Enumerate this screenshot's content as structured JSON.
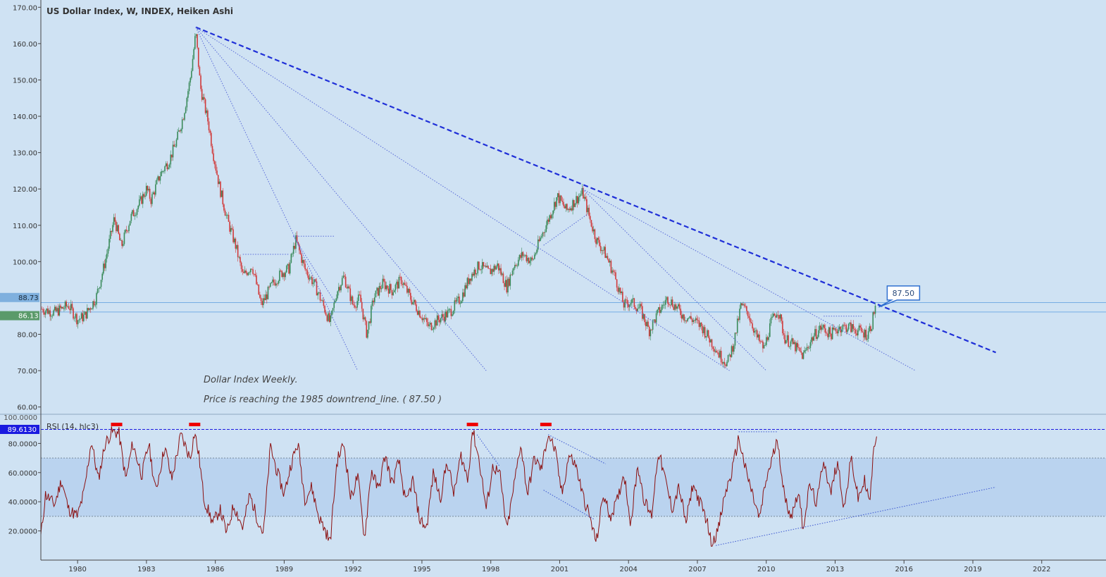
{
  "chart_data": [
    {
      "type": "candlestick",
      "title": "US Dollar Index, W, INDEX, Heiken Ashi",
      "ylim": [
        58,
        172
      ],
      "y_ticks": [
        "170.00",
        "160.00",
        "150.00",
        "140.00",
        "130.00",
        "120.00",
        "110.00",
        "100.00",
        "80.00",
        "70.00",
        "60.00"
      ],
      "y_tick_values": [
        170,
        160,
        150,
        140,
        130,
        120,
        110,
        100,
        80,
        70,
        60
      ],
      "xlim": [
        1978.4,
        2024.8
      ],
      "x_ticks": [
        "1980",
        "1983",
        "1986",
        "1989",
        "1992",
        "1995",
        "1998",
        "2001",
        "2004",
        "2007",
        "2010",
        "2013",
        "2016",
        "2019",
        "2022"
      ],
      "x_tick_values": [
        1980,
        1983,
        1986,
        1989,
        1992,
        1995,
        1998,
        2001,
        2004,
        2007,
        2010,
        2013,
        2016,
        2019,
        2022
      ],
      "price_labels": {
        "label1": "88.73",
        "value1": 88.73,
        "label2": "86.13",
        "value2": 86.13
      },
      "callout": "87.50",
      "callout_value": 87.5,
      "callout_x": 2014.9,
      "annotation_line1": "Dollar Index Weekly.",
      "annotation_line2": "Price is reaching the 1985 downtrend_line. ( 87.50 )",
      "colors": {
        "up": "#3a8a5a",
        "down": "#d03a3a",
        "trend": "#1f2fd8",
        "thin": "#5a6ad8"
      },
      "path": [
        [
          1978.4,
          87
        ],
        [
          1979.0,
          86
        ],
        [
          1979.6,
          88
        ],
        [
          1980.0,
          84
        ],
        [
          1980.3,
          85
        ],
        [
          1980.8,
          90
        ],
        [
          1981.2,
          100
        ],
        [
          1981.6,
          112
        ],
        [
          1981.9,
          104
        ],
        [
          1982.3,
          112
        ],
        [
          1982.7,
          116
        ],
        [
          1983.0,
          120
        ],
        [
          1983.2,
          117
        ],
        [
          1983.6,
          124
        ],
        [
          1984.0,
          128
        ],
        [
          1984.3,
          133
        ],
        [
          1984.6,
          140
        ],
        [
          1984.9,
          150
        ],
        [
          1985.15,
          163
        ],
        [
          1985.35,
          148
        ],
        [
          1985.7,
          138
        ],
        [
          1985.9,
          130
        ],
        [
          1986.2,
          120
        ],
        [
          1986.5,
          112
        ],
        [
          1986.9,
          104
        ],
        [
          1987.2,
          96
        ],
        [
          1987.6,
          99
        ],
        [
          1988.0,
          88
        ],
        [
          1988.5,
          94
        ],
        [
          1988.9,
          97
        ],
        [
          1989.2,
          98
        ],
        [
          1989.5,
          106
        ],
        [
          1989.9,
          98
        ],
        [
          1990.3,
          94
        ],
        [
          1990.7,
          88
        ],
        [
          1991.0,
          83
        ],
        [
          1991.3,
          92
        ],
        [
          1991.6,
          96
        ],
        [
          1992.0,
          88
        ],
        [
          1992.3,
          90
        ],
        [
          1992.6,
          80
        ],
        [
          1992.9,
          90
        ],
        [
          1993.3,
          94
        ],
        [
          1993.7,
          92
        ],
        [
          1994.1,
          95
        ],
        [
          1994.5,
          90
        ],
        [
          1994.9,
          86
        ],
        [
          1995.3,
          82
        ],
        [
          1995.7,
          84
        ],
        [
          1996.2,
          86
        ],
        [
          1996.7,
          90
        ],
        [
          1997.1,
          96
        ],
        [
          1997.5,
          99
        ],
        [
          1997.9,
          97
        ],
        [
          1998.3,
          99
        ],
        [
          1998.7,
          93
        ],
        [
          1999.0,
          99
        ],
        [
          1999.4,
          102
        ],
        [
          1999.8,
          100
        ],
        [
          2000.2,
          107
        ],
        [
          2000.6,
          113
        ],
        [
          2000.9,
          118
        ],
        [
          2001.3,
          114
        ],
        [
          2001.7,
          117
        ],
        [
          2002.0,
          119
        ],
        [
          2002.3,
          112
        ],
        [
          2002.6,
          106
        ],
        [
          2003.0,
          102
        ],
        [
          2003.4,
          96
        ],
        [
          2003.8,
          88
        ],
        [
          2004.1,
          89
        ],
        [
          2004.5,
          87
        ],
        [
          2004.9,
          81
        ],
        [
          2005.3,
          86
        ],
        [
          2005.7,
          90
        ],
        [
          2006.0,
          88
        ],
        [
          2006.4,
          85
        ],
        [
          2006.8,
          84
        ],
        [
          2007.2,
          82
        ],
        [
          2007.6,
          78
        ],
        [
          2008.0,
          74
        ],
        [
          2008.3,
          72
        ],
        [
          2008.6,
          78
        ],
        [
          2008.9,
          88
        ],
        [
          2009.2,
          86
        ],
        [
          2009.6,
          79
        ],
        [
          2009.9,
          76
        ],
        [
          2010.2,
          83
        ],
        [
          2010.5,
          87
        ],
        [
          2010.8,
          79
        ],
        [
          2011.2,
          77
        ],
        [
          2011.6,
          74
        ],
        [
          2012.0,
          79
        ],
        [
          2012.4,
          82
        ],
        [
          2012.8,
          80
        ],
        [
          2013.2,
          82
        ],
        [
          2013.6,
          82
        ],
        [
          2014.0,
          81
        ],
        [
          2014.4,
          80
        ],
        [
          2014.6,
          83
        ],
        [
          2014.75,
          88
        ]
      ],
      "trend_lines": [
        {
          "x1": 1985.15,
          "y1": 164.5,
          "x2": 2020.0,
          "y2": 75.0,
          "style": "dashed"
        },
        {
          "x1": 1985.15,
          "y1": 164.5,
          "x2": 1992.2,
          "y2": 70.0,
          "style": "dotted"
        },
        {
          "x1": 1985.15,
          "y1": 164.5,
          "x2": 1997.8,
          "y2": 70.0,
          "style": "dotted"
        },
        {
          "x1": 1985.15,
          "y1": 164.5,
          "x2": 2008.4,
          "y2": 70.0,
          "style": "dotted"
        },
        {
          "x1": 2002.0,
          "y1": 120.0,
          "x2": 2010.0,
          "y2": 70.0,
          "style": "dotted"
        },
        {
          "x1": 2002.0,
          "y1": 120.0,
          "x2": 2016.5,
          "y2": 70.0,
          "style": "dotted"
        },
        {
          "x1": 1987.2,
          "y1": 102.0,
          "x2": 1989.2,
          "y2": 102.0,
          "style": "dotted"
        },
        {
          "x1": 1989.4,
          "y1": 107.0,
          "x2": 1991.2,
          "y2": 107.0,
          "style": "dotted"
        },
        {
          "x1": 1989.4,
          "y1": 107.0,
          "x2": 1991.2,
          "y2": 89.0,
          "style": "dotted"
        },
        {
          "x1": 2000.3,
          "y1": 104.5,
          "x2": 2002.2,
          "y2": 113.0,
          "style": "dotted"
        },
        {
          "x1": 2012.5,
          "y1": 85.0,
          "x2": 2014.2,
          "y2": 85.0,
          "style": "dotted"
        }
      ]
    },
    {
      "type": "line",
      "title": "RSI (14, hlc3)",
      "ylim": [
        0,
        100
      ],
      "y_ticks": [
        "80.0000",
        "60.0000",
        "40.0000",
        "20.0000"
      ],
      "y_tick_values": [
        80,
        60,
        40,
        20
      ],
      "top_tick": "100.0000",
      "current_label": "89.6130",
      "current_value": 89.613,
      "band": [
        30,
        70
      ],
      "colors": {
        "line": "#8b1010",
        "band": "#b3cdee",
        "marker": "#ee0000"
      },
      "path": [
        [
          1978.4,
          16
        ],
        [
          1978.6,
          45
        ],
        [
          1979.0,
          38
        ],
        [
          1979.3,
          55
        ],
        [
          1979.6,
          35
        ],
        [
          1980.0,
          30
        ],
        [
          1980.3,
          48
        ],
        [
          1980.6,
          82
        ],
        [
          1980.9,
          55
        ],
        [
          1981.2,
          80
        ],
        [
          1981.5,
          88
        ],
        [
          1981.8,
          87
        ],
        [
          1982.1,
          55
        ],
        [
          1982.4,
          80
        ],
        [
          1982.8,
          58
        ],
        [
          1983.1,
          80
        ],
        [
          1983.4,
          47
        ],
        [
          1983.8,
          78
        ],
        [
          1984.1,
          55
        ],
        [
          1984.5,
          86
        ],
        [
          1984.9,
          70
        ],
        [
          1985.1,
          88
        ],
        [
          1985.3,
          70
        ],
        [
          1985.5,
          42
        ],
        [
          1985.9,
          25
        ],
        [
          1986.2,
          35
        ],
        [
          1986.5,
          18
        ],
        [
          1986.8,
          38
        ],
        [
          1987.2,
          22
        ],
        [
          1987.5,
          45
        ],
        [
          1987.8,
          30
        ],
        [
          1988.1,
          18
        ],
        [
          1988.4,
          78
        ],
        [
          1988.7,
          60
        ],
        [
          1989.0,
          45
        ],
        [
          1989.3,
          66
        ],
        [
          1989.6,
          80
        ],
        [
          1989.9,
          42
        ],
        [
          1990.2,
          50
        ],
        [
          1990.5,
          30
        ],
        [
          1990.8,
          20
        ],
        [
          1991.0,
          12
        ],
        [
          1991.3,
          68
        ],
        [
          1991.6,
          80
        ],
        [
          1991.9,
          42
        ],
        [
          1992.2,
          58
        ],
        [
          1992.5,
          15
        ],
        [
          1992.8,
          62
        ],
        [
          1993.1,
          48
        ],
        [
          1993.4,
          72
        ],
        [
          1993.7,
          52
        ],
        [
          1994.0,
          68
        ],
        [
          1994.3,
          38
        ],
        [
          1994.6,
          55
        ],
        [
          1994.9,
          28
        ],
        [
          1995.2,
          22
        ],
        [
          1995.5,
          60
        ],
        [
          1995.8,
          42
        ],
        [
          1996.1,
          68
        ],
        [
          1996.4,
          45
        ],
        [
          1996.7,
          72
        ],
        [
          1997.0,
          55
        ],
        [
          1997.2,
          90
        ],
        [
          1997.5,
          68
        ],
        [
          1997.8,
          35
        ],
        [
          1998.1,
          65
        ],
        [
          1998.4,
          58
        ],
        [
          1998.7,
          20
        ],
        [
          1999.0,
          50
        ],
        [
          1999.3,
          80
        ],
        [
          1999.6,
          45
        ],
        [
          1999.9,
          70
        ],
        [
          2000.2,
          62
        ],
        [
          2000.5,
          87
        ],
        [
          2000.8,
          75
        ],
        [
          2001.1,
          45
        ],
        [
          2001.4,
          72
        ],
        [
          2001.7,
          65
        ],
        [
          2002.0,
          45
        ],
        [
          2002.3,
          30
        ],
        [
          2002.6,
          12
        ],
        [
          2002.9,
          45
        ],
        [
          2003.2,
          30
        ],
        [
          2003.5,
          40
        ],
        [
          2003.8,
          60
        ],
        [
          2004.1,
          25
        ],
        [
          2004.4,
          65
        ],
        [
          2004.7,
          40
        ],
        [
          2005.0,
          30
        ],
        [
          2005.3,
          75
        ],
        [
          2005.6,
          55
        ],
        [
          2005.9,
          35
        ],
        [
          2006.2,
          50
        ],
        [
          2006.5,
          25
        ],
        [
          2006.8,
          52
        ],
        [
          2007.1,
          40
        ],
        [
          2007.4,
          28
        ],
        [
          2007.6,
          12
        ],
        [
          2007.9,
          20
        ],
        [
          2008.2,
          45
        ],
        [
          2008.5,
          60
        ],
        [
          2008.8,
          84
        ],
        [
          2009.1,
          62
        ],
        [
          2009.4,
          45
        ],
        [
          2009.7,
          28
        ],
        [
          2010.0,
          55
        ],
        [
          2010.3,
          72
        ],
        [
          2010.5,
          83
        ],
        [
          2010.8,
          42
        ],
        [
          2011.1,
          30
        ],
        [
          2011.4,
          48
        ],
        [
          2011.6,
          22
        ],
        [
          2011.9,
          52
        ],
        [
          2012.2,
          38
        ],
        [
          2012.5,
          70
        ],
        [
          2012.8,
          45
        ],
        [
          2013.1,
          68
        ],
        [
          2013.4,
          35
        ],
        [
          2013.7,
          70
        ],
        [
          2014.0,
          42
        ],
        [
          2014.3,
          55
        ],
        [
          2014.5,
          38
        ],
        [
          2014.7,
          78
        ],
        [
          2014.85,
          92
        ]
      ],
      "top_markers": [
        1981.7,
        1985.1,
        1997.2,
        2000.4
      ],
      "trend_lines": [
        {
          "x1": 2007.8,
          "y1": 10.0,
          "x2": 2020.0,
          "y2": 50.0,
          "style": "dotted"
        },
        {
          "x1": 1997.4,
          "y1": 86.0,
          "x2": 1998.4,
          "y2": 64.0,
          "style": "dotted"
        },
        {
          "x1": 2000.5,
          "y1": 86.0,
          "x2": 2003.0,
          "y2": 66.0,
          "style": "dotted"
        },
        {
          "x1": 2000.3,
          "y1": 48.0,
          "x2": 2002.5,
          "y2": 28.0,
          "style": "dotted"
        },
        {
          "x1": 2008.8,
          "y1": 88.0,
          "x2": 2010.5,
          "y2": 88.0,
          "style": "dotted"
        }
      ]
    }
  ]
}
